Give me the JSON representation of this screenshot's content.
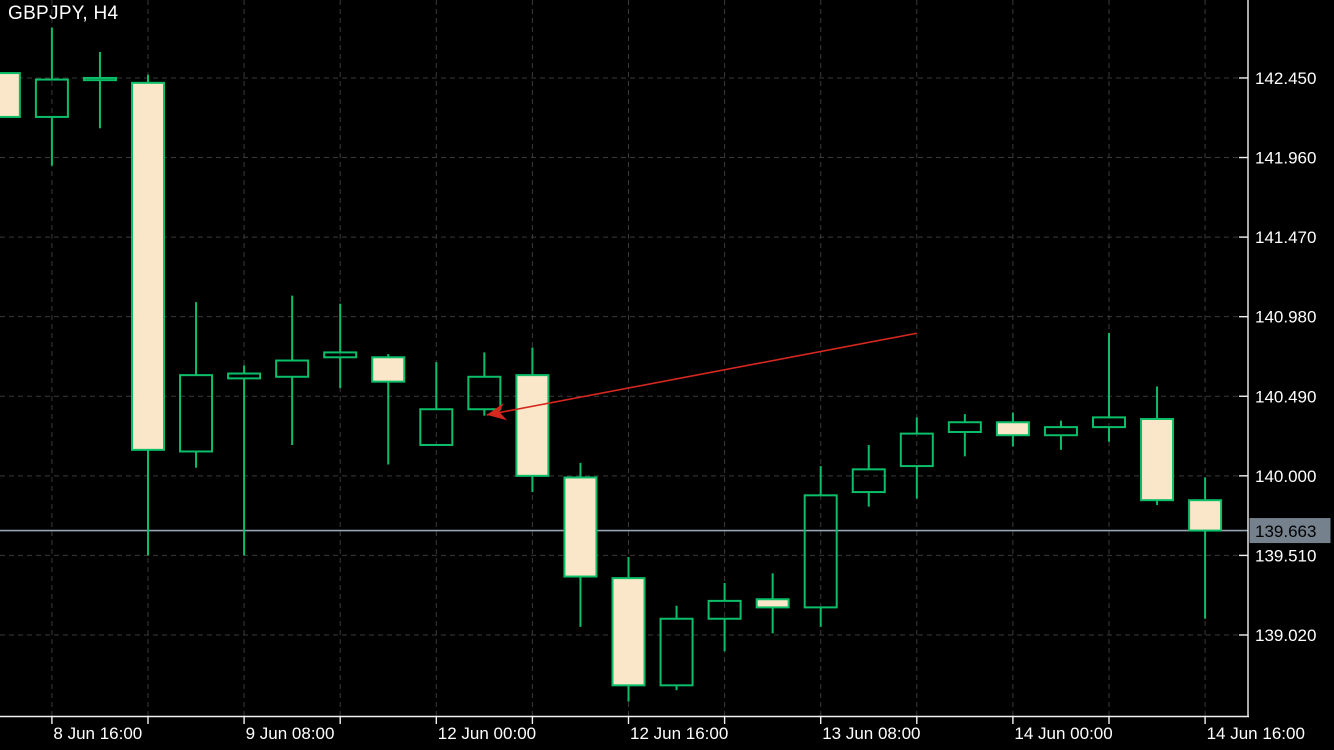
{
  "header": {
    "title": "GBPJPY, H4"
  },
  "colors": {
    "background": "#000000",
    "grid": "#3a3a3a",
    "candle_outline": "#0bbf69",
    "bear_fill": "#fae7c9",
    "axis_line": "#f2f2f2",
    "axis_text": "#ffffff",
    "current_price_line": "#96a3b2",
    "price_tag_bg": "#75828e",
    "price_tag_text": "#000000",
    "trendline": "#d5281e"
  },
  "chart_data": {
    "type": "candlestick",
    "symbol": "GBPJPY",
    "timeframe": "H4",
    "current_price": "139.663",
    "y_axis": {
      "side": "right",
      "tick_labels": [
        "142.450",
        "141.960",
        "141.470",
        "140.980",
        "140.490",
        "140.000",
        "139.510",
        "139.020"
      ],
      "step": 0.49
    },
    "x_axis": {
      "labels": [
        {
          "text": "8 Jun 16:00",
          "candle_index": 1
        },
        {
          "text": "9 Jun 08:00",
          "candle_index": 5
        },
        {
          "text": "12 Jun 00:00",
          "candle_index": 9
        },
        {
          "text": "12 Jun 16:00",
          "candle_index": 13
        },
        {
          "text": "13 Jun 08:00",
          "candle_index": 17
        },
        {
          "text": "14 Jun 00:00",
          "candle_index": 21
        },
        {
          "text": "14 Jun 16:00",
          "candle_index": 25
        }
      ],
      "gridline_every_n_candles": 2
    },
    "candles": [
      {
        "time": "8 Jun 12:00",
        "o": 142.48,
        "h": 142.48,
        "l": 142.21,
        "c": 142.21
      },
      {
        "time": "8 Jun 16:00",
        "o": 142.21,
        "h": 142.76,
        "l": 141.91,
        "c": 142.44
      },
      {
        "time": "8 Jun 20:00",
        "o": 142.44,
        "h": 142.61,
        "l": 142.14,
        "c": 142.45
      },
      {
        "time": "9 Jun 00:00",
        "o": 142.42,
        "h": 142.47,
        "l": 139.51,
        "c": 140.16
      },
      {
        "time": "9 Jun 04:00",
        "o": 140.15,
        "h": 141.07,
        "l": 140.05,
        "c": 140.62
      },
      {
        "time": "9 Jun 08:00",
        "o": 140.6,
        "h": 140.68,
        "l": 139.51,
        "c": 140.63
      },
      {
        "time": "9 Jun 12:00",
        "o": 140.61,
        "h": 141.11,
        "l": 140.19,
        "c": 140.71
      },
      {
        "time": "9 Jun 16:00",
        "o": 140.73,
        "h": 141.06,
        "l": 140.54,
        "c": 140.76
      },
      {
        "time": "9 Jun 20:00",
        "o": 140.73,
        "h": 140.75,
        "l": 140.07,
        "c": 140.58
      },
      {
        "time": "12 Jun 00:00",
        "o": 140.19,
        "h": 140.7,
        "l": 140.19,
        "c": 140.41
      },
      {
        "time": "12 Jun 04:00",
        "o": 140.41,
        "h": 140.76,
        "l": 140.37,
        "c": 140.61
      },
      {
        "time": "12 Jun 08:00",
        "o": 140.62,
        "h": 140.79,
        "l": 139.9,
        "c": 140.0
      },
      {
        "time": "12 Jun 12:00",
        "o": 139.99,
        "h": 140.08,
        "l": 139.07,
        "c": 139.38
      },
      {
        "time": "12 Jun 16:00",
        "o": 139.37,
        "h": 139.5,
        "l": 138.61,
        "c": 138.71
      },
      {
        "time": "12 Jun 20:00",
        "o": 138.71,
        "h": 139.2,
        "l": 138.68,
        "c": 139.12
      },
      {
        "time": "13 Jun 00:00",
        "o": 139.12,
        "h": 139.34,
        "l": 138.92,
        "c": 139.23
      },
      {
        "time": "13 Jun 04:00",
        "o": 139.24,
        "h": 139.4,
        "l": 139.03,
        "c": 139.19
      },
      {
        "time": "13 Jun 08:00",
        "o": 139.19,
        "h": 140.06,
        "l": 139.07,
        "c": 139.88
      },
      {
        "time": "13 Jun 12:00",
        "o": 139.9,
        "h": 140.19,
        "l": 139.81,
        "c": 140.04
      },
      {
        "time": "13 Jun 16:00",
        "o": 140.06,
        "h": 140.36,
        "l": 139.86,
        "c": 140.26
      },
      {
        "time": "13 Jun 20:00",
        "o": 140.27,
        "h": 140.38,
        "l": 140.12,
        "c": 140.33
      },
      {
        "time": "14 Jun 00:00",
        "o": 140.33,
        "h": 140.39,
        "l": 140.18,
        "c": 140.25
      },
      {
        "time": "14 Jun 04:00",
        "o": 140.25,
        "h": 140.34,
        "l": 140.16,
        "c": 140.3
      },
      {
        "time": "14 Jun 08:00",
        "o": 140.3,
        "h": 140.88,
        "l": 140.21,
        "c": 140.36
      },
      {
        "time": "14 Jun 12:00",
        "o": 140.35,
        "h": 140.55,
        "l": 139.82,
        "c": 139.85
      },
      {
        "time": "14 Jun 16:00",
        "o": 139.85,
        "h": 139.99,
        "l": 139.12,
        "c": 139.663
      }
    ],
    "annotations": {
      "trendline": {
        "from": {
          "candle": 10.05,
          "price": 140.375
        },
        "to": {
          "candle": 19.0,
          "price": 140.878
        },
        "arrow_at": "start"
      }
    }
  }
}
